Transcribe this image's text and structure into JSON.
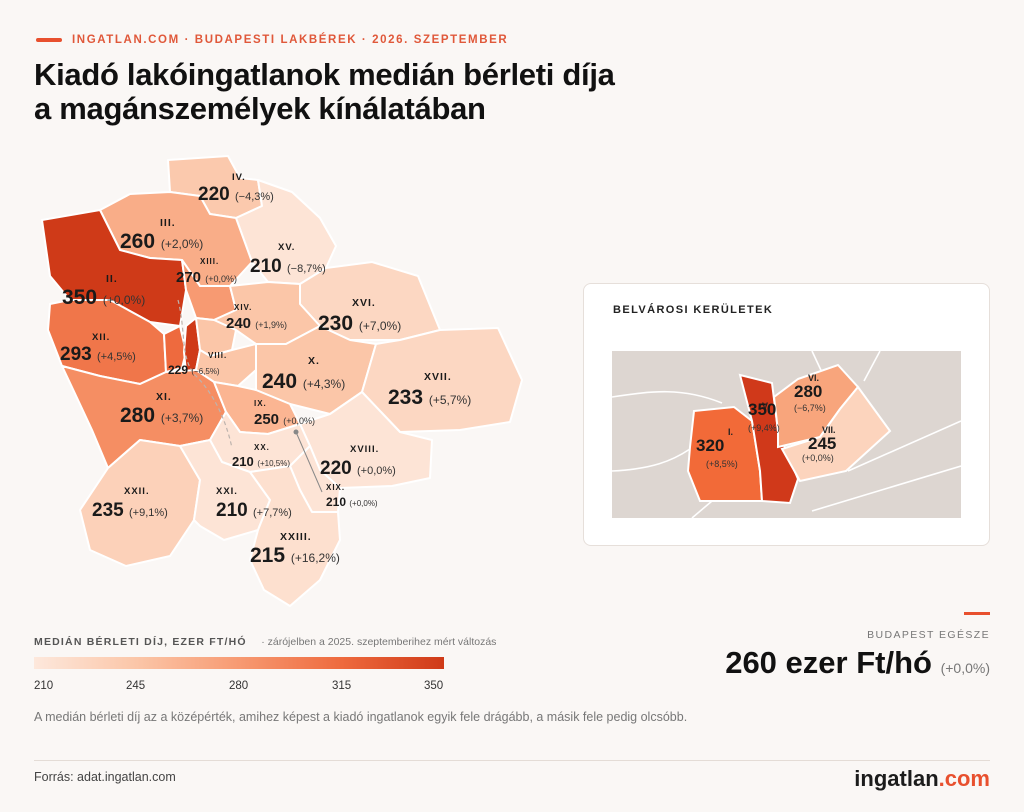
{
  "header": {
    "kicker": "INGATLAN.COM · BUDAPESTI LAKBÉREK · 2026. SZEPTEMBER",
    "title_line1": "Kiadó lakóingatlanok medián bérleti díja",
    "title_line2": "a magánszemélyek kínálatában"
  },
  "districts": [
    {
      "id": "IV.",
      "value": "220",
      "change": "(−4,3%)"
    },
    {
      "id": "III.",
      "value": "260",
      "change": "(+2,0%)"
    },
    {
      "id": "XV.",
      "value": "210",
      "change": "(−8,7%)"
    },
    {
      "id": "II.",
      "value": "350",
      "change": "(+0,0%)"
    },
    {
      "id": "XIII.",
      "value": "270",
      "change": "(+0,0%)"
    },
    {
      "id": "XVI.",
      "value": "230",
      "change": "(+7,0%)"
    },
    {
      "id": "XIV.",
      "value": "240",
      "change": "(+1,9%)"
    },
    {
      "id": "XII.",
      "value": "293",
      "change": "(+4,5%)"
    },
    {
      "id": "VIII.",
      "value": "229",
      "change": "(−6,5%)"
    },
    {
      "id": "X.",
      "value": "240",
      "change": "(+4,3%)"
    },
    {
      "id": "XVII.",
      "value": "233",
      "change": "(+5,7%)"
    },
    {
      "id": "XI.",
      "value": "280",
      "change": "(+3,7%)"
    },
    {
      "id": "IX.",
      "value": "250",
      "change": "(+0,0%)"
    },
    {
      "id": "XVIII.",
      "value": "220",
      "change": "(+0,0%)"
    },
    {
      "id": "XX.",
      "value": "210",
      "change": "(+10,5%)"
    },
    {
      "id": "XIX.",
      "value": "210",
      "change": "(+0,0%)"
    },
    {
      "id": "XXII.",
      "value": "235",
      "change": "(+9,1%)"
    },
    {
      "id": "XXI.",
      "value": "210",
      "change": "(+7,7%)"
    },
    {
      "id": "XXIII.",
      "value": "215",
      "change": "(+16,2%)"
    }
  ],
  "inset": {
    "title": "BELVÁROSI KERÜLETEK",
    "districts": [
      {
        "id": "I.",
        "value": "320",
        "change": "(+8,5%)"
      },
      {
        "id": "V.",
        "value": "350",
        "change": "(+9,4%)"
      },
      {
        "id": "VI.",
        "value": "280",
        "change": "(−6,7%)"
      },
      {
        "id": "VII.",
        "value": "245",
        "change": "(+0,0%)"
      }
    ]
  },
  "legend": {
    "title": "MEDIÁN BÉRLETI DÍJ, EZER FT/HÓ",
    "note": "· zárójelben a 2025. szeptemberihez mért változás",
    "ticks": [
      "210",
      "245",
      "280",
      "315",
      "350"
    ]
  },
  "total": {
    "label": "BUDAPEST EGÉSZE",
    "value": "260 ezer Ft/hó",
    "change": "(+0,0%)"
  },
  "description": "A medián bérleti díj az a középérték, amihez képest a kiadó ingatlanok egyik fele drágább, a másik fele pedig olcsóbb.",
  "source": "Forrás: adat.ingatlan.com",
  "logo": {
    "main": "ingatlan",
    "suffix": ".com"
  },
  "colors": {
    "accent": "#e8502e",
    "max": "#cf3a18",
    "min": "#fde8dc"
  }
}
